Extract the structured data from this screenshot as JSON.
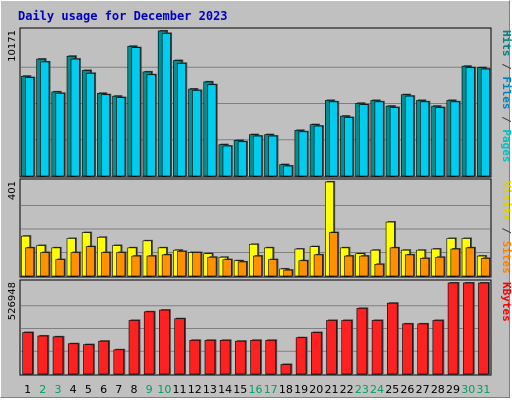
{
  "title": "Daily usage for December 2023",
  "chart_data": {
    "type": "bar",
    "categories": [
      "1",
      "2",
      "3",
      "4",
      "5",
      "6",
      "7",
      "8",
      "9",
      "10",
      "11",
      "12",
      "13",
      "14",
      "15",
      "16",
      "17",
      "18",
      "19",
      "20",
      "21",
      "22",
      "23",
      "24",
      "25",
      "26",
      "27",
      "28",
      "29",
      "30",
      "31"
    ],
    "weekend_days": [
      2,
      3,
      9,
      10,
      16,
      17,
      23,
      24,
      30,
      31
    ],
    "panels": [
      {
        "id": "hits",
        "max_label": "10171",
        "ymax": 10171,
        "legend": [
          {
            "text": "Pages",
            "color": "#00c0c0"
          },
          {
            "text": " / ",
            "color": "#404040"
          },
          {
            "text": "Files",
            "color": "#0080c0"
          },
          {
            "text": " / ",
            "color": "#404040"
          },
          {
            "text": "Hits",
            "color": "#008080"
          }
        ],
        "series": [
          {
            "name": "Hits",
            "color": "#009090",
            "values": [
              7000,
              8200,
              5900,
              8400,
              7400,
              5800,
              5600,
              9100,
              7300,
              10171,
              8100,
              6100,
              6600,
              2200,
              2500,
              2900,
              2900,
              800,
              3200,
              3600,
              5300,
              4200,
              5100,
              5300,
              4900,
              5700,
              5300,
              4900,
              5300,
              7700,
              7600
            ]
          },
          {
            "name": "Files",
            "color": "#00ccf0",
            "values": [
              6900,
              8000,
              5800,
              8200,
              7200,
              5700,
              5500,
              9000,
              7100,
              10000,
              7900,
              6000,
              6400,
              2100,
              2400,
              2800,
              2800,
              700,
              3100,
              3500,
              5200,
              4100,
              5000,
              5200,
              4800,
              5600,
              5200,
              4800,
              5200,
              7600,
              7500
            ]
          }
        ]
      },
      {
        "id": "visits",
        "max_label": "401",
        "ymax": 401,
        "legend": [
          {
            "text": "Sites",
            "color": "#ff8000"
          },
          {
            "text": " / ",
            "color": "#404040"
          },
          {
            "text": "Visits",
            "color": "#e0d000"
          }
        ],
        "series": [
          {
            "name": "Visits",
            "color": "#ffff00",
            "values": [
              170,
              130,
              120,
              160,
              185,
              165,
              130,
              120,
              150,
              120,
              110,
              100,
              95,
              80,
              65,
              135,
              120,
              30,
              115,
              125,
              401,
              120,
              95,
              110,
              230,
              110,
              110,
              115,
              160,
              160,
              85
            ]
          },
          {
            "name": "Sites",
            "color": "#ff9000",
            "values": [
              120,
              100,
              70,
              100,
              125,
              100,
              100,
              85,
              85,
              90,
              105,
              100,
              80,
              70,
              60,
              85,
              70,
              25,
              65,
              90,
              185,
              85,
              85,
              50,
              120,
              90,
              75,
              80,
              115,
              120,
              75
            ]
          }
        ]
      },
      {
        "id": "kbytes",
        "max_label": "526948",
        "ymax": 526948,
        "legend": [
          {
            "text": "KBytes",
            "color": "#ff0000"
          }
        ],
        "series": [
          {
            "name": "KBytes",
            "color": "#ff2020",
            "values": [
              240000,
              220000,
              215000,
              175000,
              170000,
              190000,
              140000,
              310000,
              360000,
              370000,
              320000,
              195000,
              195000,
              195000,
              190000,
              195000,
              195000,
              55000,
              210000,
              240000,
              310000,
              310000,
              380000,
              310000,
              410000,
              290000,
              290000,
              310000,
              526948,
              526948,
              526948
            ]
          }
        ]
      }
    ]
  }
}
